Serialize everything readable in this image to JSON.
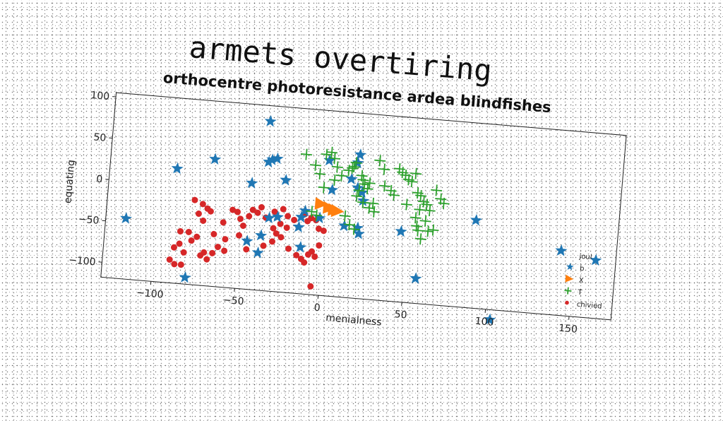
{
  "chart_data": {
    "type": "scatter",
    "title": "armets overtiring",
    "subtitle": "orthocentre photoresistance ardea blindfishes",
    "xlabel": "menialness",
    "ylabel": "equating",
    "xlim": [
      -130,
      175
    ],
    "ylim": [
      -118,
      105
    ],
    "xticks": [
      -100,
      -50,
      0,
      50,
      100,
      150
    ],
    "yticks": [
      100,
      50,
      0,
      -50,
      -100
    ],
    "legend": {
      "title": "joul",
      "placement": "bottom-right"
    },
    "grid": false,
    "series": [
      {
        "name": "b",
        "marker": "star",
        "color": "#1f77b4",
        "points": [
          [
            -37,
            86
          ],
          [
            -90,
            20
          ],
          [
            -68,
            35
          ],
          [
            -36,
            37
          ],
          [
            -34,
            40
          ],
          [
            -31,
            42
          ],
          [
            -45,
            10
          ],
          [
            -25,
            17
          ],
          [
            -118,
            -45
          ],
          [
            -80,
            -110
          ],
          [
            -45,
            -60
          ],
          [
            -38,
            -73
          ],
          [
            -37,
            -52
          ],
          [
            -33,
            -30
          ],
          [
            -28,
            -28
          ],
          [
            -15,
            -38
          ],
          [
            -13,
            -62
          ],
          [
            -3,
            -25
          ],
          [
            -12,
            -18
          ],
          [
            0,
            45
          ],
          [
            3,
            10
          ],
          [
            18,
            55
          ],
          [
            17,
            45
          ],
          [
            14,
            25
          ],
          [
            18,
            15
          ],
          [
            21,
            10
          ],
          [
            22,
            0
          ],
          [
            12,
            -32
          ],
          [
            20,
            -33
          ],
          [
            21,
            -40
          ],
          [
            -14,
            -26
          ],
          [
            46,
            -33
          ],
          [
            57,
            -88
          ],
          [
            90,
            -12
          ],
          [
            103,
            -130
          ],
          [
            142,
            -40
          ],
          [
            163,
            -48
          ]
        ]
      },
      {
        "name": "X",
        "marker": "triangle-right",
        "color": "#ff7f0e",
        "points": [
          [
            -3,
            -8
          ],
          [
            2,
            -12
          ],
          [
            5,
            -14
          ],
          [
            7,
            -15
          ]
        ]
      },
      {
        "name": "T",
        "marker": "plus",
        "color": "#2ca02c",
        "points": [
          [
            -14,
            50
          ],
          [
            -8,
            38
          ],
          [
            -5,
            28
          ],
          [
            -2,
            52
          ],
          [
            1,
            55
          ],
          [
            3,
            48
          ],
          [
            5,
            38
          ],
          [
            4,
            22
          ],
          [
            -2,
            12
          ],
          [
            8,
            28
          ],
          [
            12,
            35
          ],
          [
            14,
            38
          ],
          [
            15,
            40
          ],
          [
            16,
            45
          ],
          [
            20,
            30
          ],
          [
            21,
            25
          ],
          [
            22,
            20
          ],
          [
            24,
            15
          ],
          [
            25,
            22
          ],
          [
            19,
            12
          ],
          [
            18,
            5
          ],
          [
            22,
            -2
          ],
          [
            26,
            -8
          ],
          [
            28,
            -2
          ],
          [
            29,
            -12
          ],
          [
            30,
            50
          ],
          [
            33,
            40
          ],
          [
            34,
            20
          ],
          [
            38,
            15
          ],
          [
            40,
            10
          ],
          [
            42,
            42
          ],
          [
            44,
            38
          ],
          [
            46,
            35
          ],
          [
            48,
            30
          ],
          [
            50,
            28
          ],
          [
            52,
            38
          ],
          [
            54,
            15
          ],
          [
            56,
            12
          ],
          [
            58,
            5
          ],
          [
            60,
            2
          ],
          [
            62,
            -5
          ],
          [
            65,
            20
          ],
          [
            68,
            10
          ],
          [
            70,
            5
          ],
          [
            54,
            -15
          ],
          [
            55,
            -25
          ],
          [
            56,
            -30
          ],
          [
            58,
            -40
          ],
          [
            60,
            -18
          ],
          [
            62,
            -30
          ],
          [
            65,
            -28
          ],
          [
            12,
            -20
          ],
          [
            15,
            -30
          ],
          [
            18,
            -35
          ],
          [
            -5,
            -22
          ],
          [
            -8,
            -18
          ],
          [
            48,
            0
          ],
          [
            56,
            -5
          ]
        ]
      },
      {
        "name": "chivied",
        "marker": "circle",
        "color": "#d62728",
        "points": [
          [
            -78,
            -16
          ],
          [
            -73,
            -20
          ],
          [
            -70,
            -25
          ],
          [
            -68,
            -28
          ],
          [
            -75,
            -32
          ],
          [
            -72,
            -40
          ],
          [
            -85,
            -55
          ],
          [
            -80,
            -55
          ],
          [
            -78,
            -65
          ],
          [
            -75,
            -60
          ],
          [
            -85,
            -70
          ],
          [
            -88,
            -75
          ],
          [
            -82,
            -80
          ],
          [
            -90,
            -90
          ],
          [
            -87,
            -95
          ],
          [
            -83,
            -95
          ],
          [
            -72,
            -82
          ],
          [
            -70,
            -78
          ],
          [
            -68,
            -86
          ],
          [
            -65,
            -78
          ],
          [
            -62,
            -70
          ],
          [
            -58,
            -74
          ],
          [
            -45,
            -70
          ],
          [
            -50,
            -54
          ],
          [
            -48,
            -42
          ],
          [
            -50,
            -34
          ],
          [
            -45,
            -30
          ],
          [
            -43,
            -22
          ],
          [
            -40,
            -25
          ],
          [
            -38,
            -18
          ],
          [
            -35,
            -30
          ],
          [
            -30,
            -42
          ],
          [
            -28,
            -48
          ],
          [
            -25,
            -52
          ],
          [
            -22,
            -40
          ],
          [
            -22,
            -26
          ],
          [
            -25,
            -18
          ],
          [
            -30,
            -22
          ],
          [
            -26,
            -36
          ],
          [
            -20,
            -65
          ],
          [
            -15,
            -72
          ],
          [
            -12,
            -76
          ],
          [
            -10,
            -80
          ],
          [
            -8,
            -70
          ],
          [
            -6,
            -66
          ],
          [
            -4,
            -72
          ],
          [
            -2,
            -58
          ],
          [
            0,
            -40
          ],
          [
            -3,
            -38
          ],
          [
            -5,
            -28
          ],
          [
            -8,
            -26
          ],
          [
            -10,
            -30
          ],
          [
            -12,
            -22
          ],
          [
            -18,
            -30
          ],
          [
            -52,
            -26
          ],
          [
            -55,
            -24
          ],
          [
            -58,
            -60
          ],
          [
            -30,
            -58
          ],
          [
            -35,
            -64
          ],
          [
            -5,
            -108
          ],
          [
            -65,
            -55
          ],
          [
            -60,
            -40
          ]
        ]
      }
    ]
  }
}
